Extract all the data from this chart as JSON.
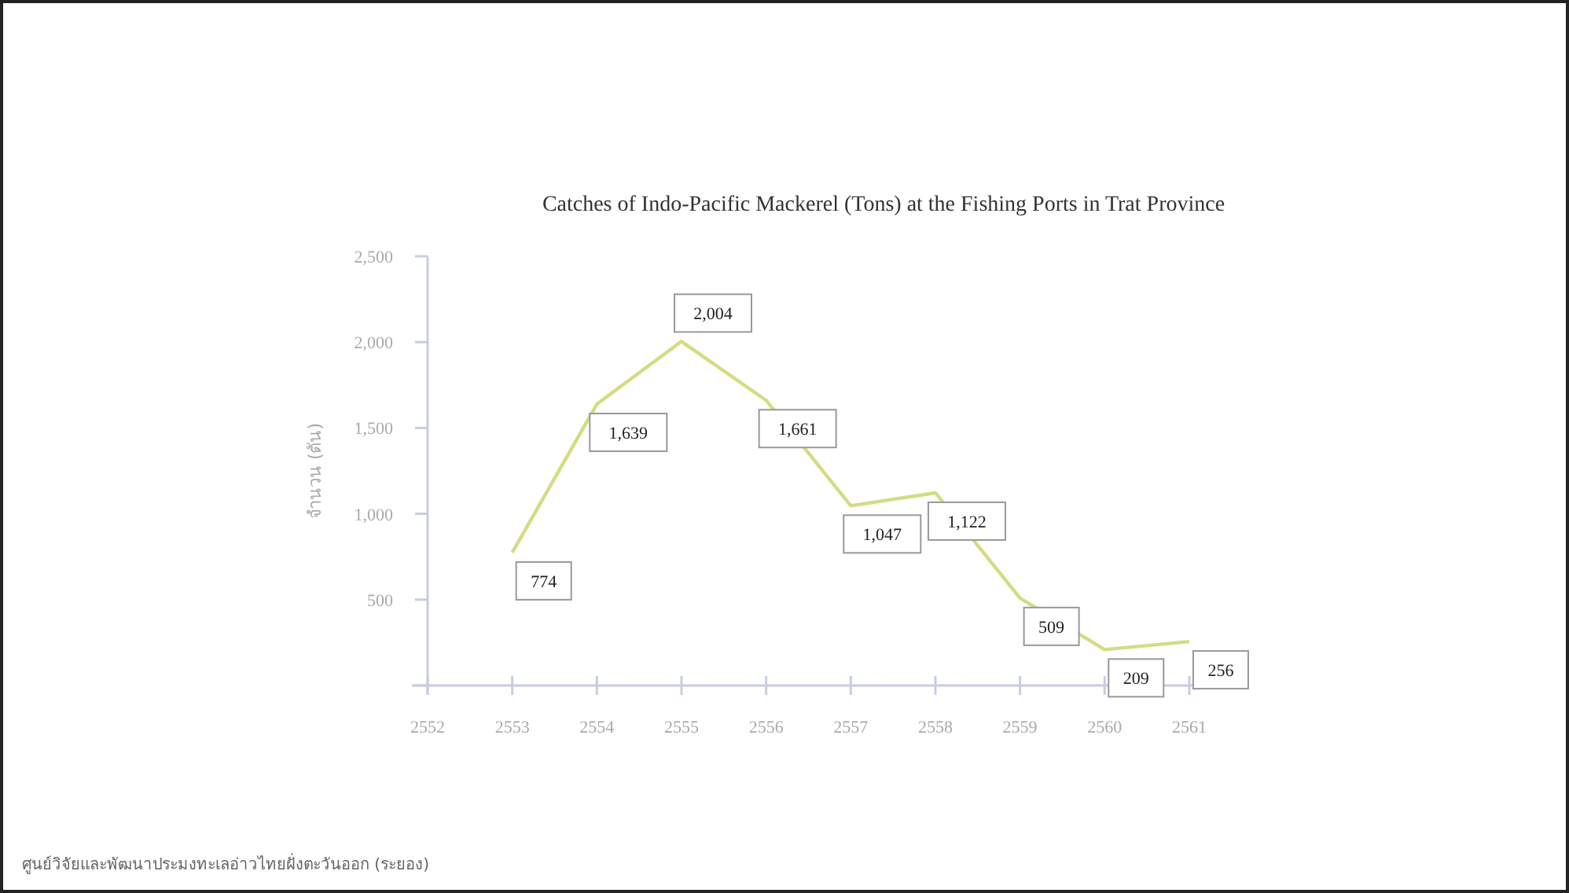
{
  "chart_data": {
    "type": "line",
    "title": "Catches of Indo-Pacific Mackerel (Tons) at the Fishing Ports in Trat Province",
    "ylabel": "จำนวน (ตัน)",
    "x": [
      2553,
      2554,
      2555,
      2556,
      2557,
      2558,
      2559,
      2560,
      2561
    ],
    "series": [
      {
        "color": "#d4dc82",
        "values": [
          774,
          1639,
          2004,
          1661,
          1047,
          1122,
          509,
          209,
          256
        ],
        "value_labels": [
          "774",
          "1,639",
          "2,004",
          "1,661",
          "1,047",
          "1,122",
          "509",
          "209",
          "256"
        ]
      }
    ],
    "xlim": [
      2552,
      2561.4
    ],
    "xticks": [
      2552,
      2553,
      2554,
      2555,
      2556,
      2557,
      2558,
      2559,
      2560,
      2561
    ],
    "ylim": [
      0,
      2500
    ],
    "yticks": [
      {
        "value": 0,
        "label": null
      },
      {
        "value": 500,
        "label": "500"
      },
      {
        "value": 1000,
        "label": "1,000"
      },
      {
        "value": 1500,
        "label": "1,500"
      },
      {
        "value": 2000,
        "label": "2,000"
      },
      {
        "value": 2500,
        "label": "2,500"
      }
    ],
    "grid": false,
    "marker": "none",
    "line_style": "solid",
    "annotations": [
      "ศูนย์วิจัยและพัฒนาประมงทะเลอ่าวไทยฝั่งตะวันออก (ระยอง)"
    ]
  }
}
